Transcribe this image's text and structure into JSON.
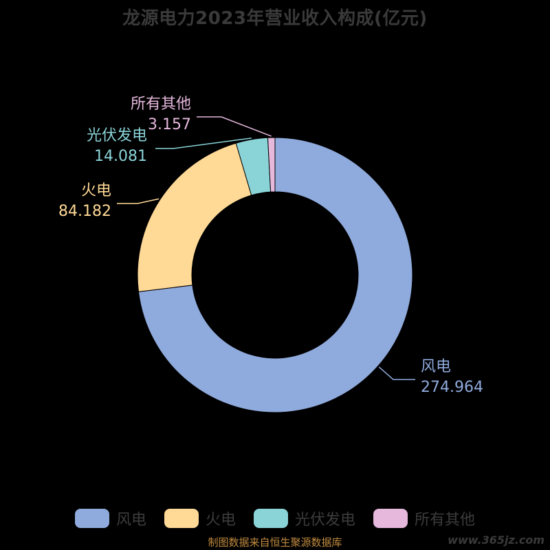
{
  "title": "龙源电力2023年营业收入构成(亿元)",
  "source": "制图数据来自恒生聚源数据库",
  "watermark": "www.365jz.com",
  "chart_data": {
    "type": "pie",
    "title": "龙源电力2023年营业收入构成(亿元)",
    "donut": true,
    "legend_position": "bottom",
    "slices": [
      {
        "name": "风电",
        "value": 274.964,
        "color": "#8faadc"
      },
      {
        "name": "火电",
        "value": 84.182,
        "color": "#ffd996"
      },
      {
        "name": "光伏发电",
        "value": 14.081,
        "color": "#8ad4d8"
      },
      {
        "name": "所有其他",
        "value": 3.157,
        "color": "#e6b8dc"
      }
    ]
  }
}
